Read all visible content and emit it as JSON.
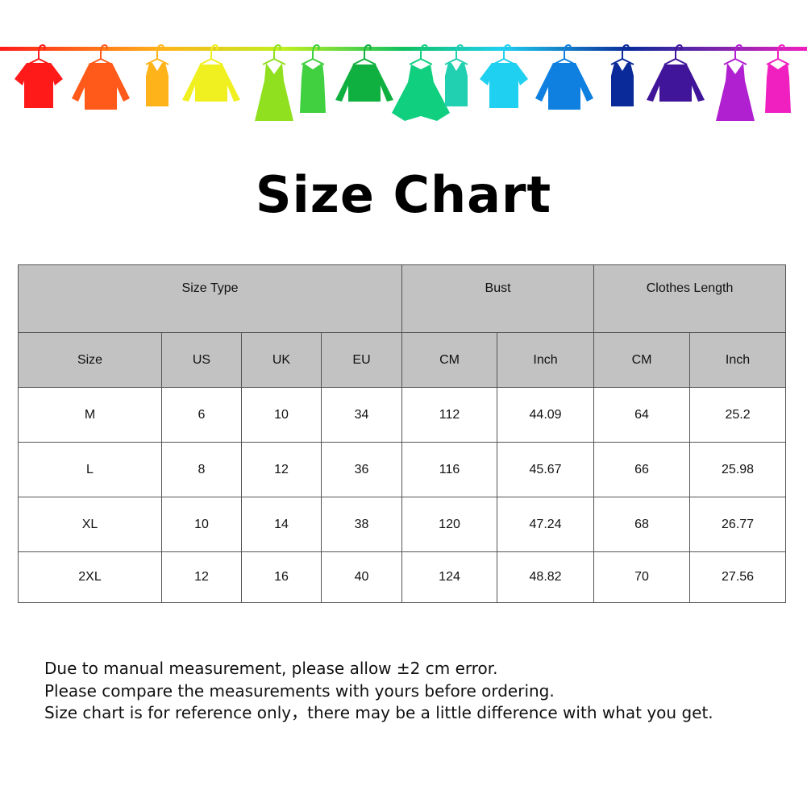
{
  "banner": {
    "icon": "clothes-on-hanger-rail",
    "colors": [
      "#ff1a1a",
      "#ff5a1a",
      "#ffb31a",
      "#f0f020",
      "#90e020",
      "#40d040",
      "#10b040",
      "#10d080",
      "#20d0b0",
      "#20d0f0",
      "#1080e0",
      "#0a2a9a",
      "#40159a",
      "#b020d0",
      "#f020c0"
    ]
  },
  "title": "Size Chart",
  "table": {
    "groups": [
      "Size Type",
      "Bust",
      "Clothes Length"
    ],
    "columns": [
      "Size",
      "US",
      "UK",
      "EU",
      "CM",
      "Inch",
      "CM",
      "Inch"
    ],
    "rows": [
      [
        "M",
        "6",
        "10",
        "34",
        "112",
        "44.09",
        "64",
        "25.2"
      ],
      [
        "L",
        "8",
        "12",
        "36",
        "116",
        "45.67",
        "66",
        "25.98"
      ],
      [
        "XL",
        "10",
        "14",
        "38",
        "120",
        "47.24",
        "68",
        "26.77"
      ],
      [
        "2XL",
        "12",
        "16",
        "40",
        "124",
        "48.82",
        "70",
        "27.56"
      ]
    ],
    "header_bg": "#c2c2c2"
  },
  "notes": [
    "Due to manual measurement, please allow ±2 cm error.",
    "Please compare the measurements with yours before ordering.",
    "Size chart is for reference only，there may be a little difference with what you get."
  ]
}
